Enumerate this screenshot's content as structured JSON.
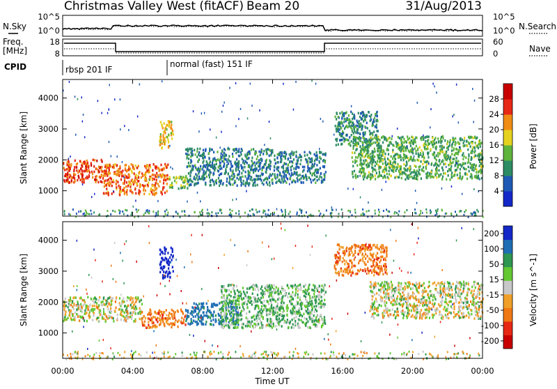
{
  "header": {
    "station": "Christmas Valley West (fitACF)",
    "beam": "Beam 20",
    "date": "31/Aug/2013"
  },
  "noise_panel": {
    "left_label": "N.Sky",
    "right_label": "N.Search",
    "left_ticks": [
      "10^5",
      "10^0"
    ],
    "right_ticks": [
      "10^5",
      "10^0"
    ]
  },
  "freq_panel": {
    "left_label_1": "Freq.",
    "left_label_2": "[MHz]",
    "left_ticks": [
      "18",
      "8"
    ],
    "right_label": "Nave",
    "right_ticks": [
      "60",
      "0"
    ]
  },
  "cpid": {
    "label": "CPID",
    "modes": [
      {
        "name": "rbsp 201 IF",
        "start_hour": 0
      },
      {
        "name": "normal (fast) 151 IF",
        "start_hour": 6
      }
    ]
  },
  "x_axis": {
    "label": "Time UT",
    "ticks": [
      "00:00",
      "04:00",
      "08:00",
      "12:00",
      "16:00",
      "20:00",
      "00:00"
    ],
    "range_hours": [
      0,
      24
    ]
  },
  "chart_data": [
    {
      "type": "heatmap",
      "name": "power",
      "ylabel": "Slant Range [km]",
      "yticks": [
        "1000",
        "2000",
        "3000",
        "4000"
      ],
      "ylim": [
        180,
        4600
      ],
      "colorbar_label": "Power [dB]",
      "colorbar_ticks": [
        "4",
        "8",
        "12",
        "16",
        "20",
        "24",
        "28"
      ],
      "colorbar_range": [
        0,
        30
      ],
      "colors": [
        "#1428c8",
        "#1e5ab4",
        "#2d8c64",
        "#5fb43c",
        "#e6d21e",
        "#f08c14",
        "#e62814",
        "#c80000"
      ],
      "echo_regions": [
        {
          "t": [
            0.0,
            2.3
          ],
          "range": [
            1300,
            2050
          ],
          "power": 24
        },
        {
          "t": [
            2.3,
            6.0
          ],
          "range": [
            900,
            1900
          ],
          "power": 22
        },
        {
          "t": [
            5.5,
            6.3
          ],
          "range": [
            2400,
            3300
          ],
          "power": 18
        },
        {
          "t": [
            6.0,
            7.2
          ],
          "range": [
            1100,
            1500
          ],
          "power": 14
        },
        {
          "t": [
            7.0,
            12.0
          ],
          "range": [
            1200,
            2400
          ],
          "power": 8
        },
        {
          "t": [
            12.0,
            15.0
          ],
          "range": [
            1300,
            2300
          ],
          "power": 8
        },
        {
          "t": [
            15.5,
            18.0
          ],
          "range": [
            2500,
            3600
          ],
          "power": 9
        },
        {
          "t": [
            16.5,
            24.0
          ],
          "range": [
            1400,
            2800
          ],
          "power": 12
        }
      ]
    },
    {
      "type": "heatmap",
      "name": "velocity",
      "ylabel": "Slant Range [km]",
      "yticks": [
        "1000",
        "2000",
        "3000",
        "4000"
      ],
      "ylim": [
        180,
        4600
      ],
      "colorbar_label": "Velocity [m s^-1]",
      "colorbar_ticks": [
        "200",
        "100",
        "50",
        "15",
        "-15",
        "-50",
        "-100",
        "-200"
      ],
      "colorbar_range": [
        -250,
        250
      ],
      "colors": [
        "#1428c8",
        "#1e6eb4",
        "#2d9650",
        "#64c832",
        "#c8c8c8",
        "#f0a028",
        "#f07814",
        "#e62814",
        "#c80000"
      ],
      "echo_regions": [
        {
          "t": [
            0.0,
            4.5
          ],
          "range": [
            1400,
            2200
          ],
          "velocity": 0
        },
        {
          "t": [
            4.5,
            7.0
          ],
          "range": [
            1200,
            1800
          ],
          "velocity": -50
        },
        {
          "t": [
            5.5,
            6.3
          ],
          "range": [
            2800,
            3800
          ],
          "velocity": 200
        },
        {
          "t": [
            7.0,
            10.0
          ],
          "range": [
            1300,
            2000
          ],
          "velocity": 100
        },
        {
          "t": [
            9.0,
            15.0
          ],
          "range": [
            1200,
            2600
          ],
          "velocity": 30
        },
        {
          "t": [
            15.5,
            18.5
          ],
          "range": [
            2900,
            3900
          ],
          "velocity": -50
        },
        {
          "t": [
            17.5,
            24.0
          ],
          "range": [
            1500,
            2700
          ],
          "velocity": 0
        }
      ]
    }
  ]
}
